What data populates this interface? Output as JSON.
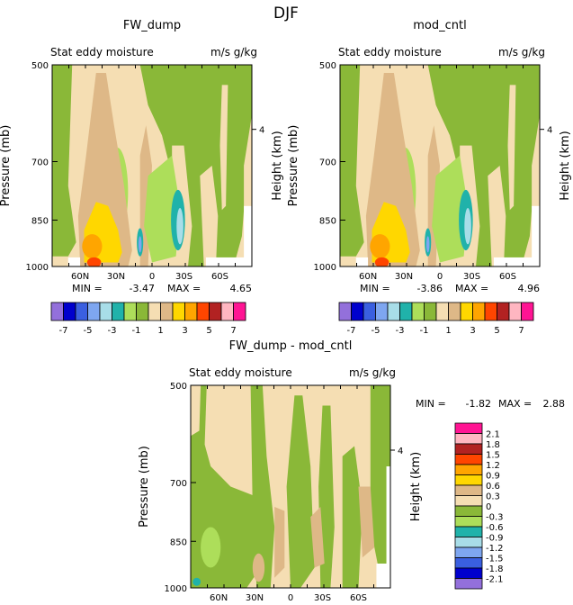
{
  "figure_title": "DJF",
  "chart_data": [
    {
      "type": "heatmap",
      "title": "FW_dump",
      "subtitle_left": "Stat eddy moisture",
      "subtitle_right": "m/s g/kg",
      "ylabel": "Pressure (mb)",
      "ylabel_right": "Height (km)",
      "yticks": [
        "500",
        "700",
        "850",
        "1000"
      ],
      "yticks_right": [
        "4"
      ],
      "xticks": [
        "60N",
        "30N",
        "0",
        "30S",
        "60S"
      ],
      "min_label": "MIN =",
      "min_value": "-3.47",
      "max_label": "MAX =",
      "max_value": "4.65"
    },
    {
      "type": "heatmap",
      "title": "mod_cntl",
      "subtitle_left": "Stat eddy moisture",
      "subtitle_right": "m/s g/kg",
      "ylabel": "Pressure (mb)",
      "ylabel_right": "Height (km)",
      "yticks": [
        "500",
        "700",
        "850",
        "1000"
      ],
      "yticks_right": [
        "4"
      ],
      "xticks": [
        "60N",
        "30N",
        "0",
        "30S",
        "60S"
      ],
      "min_label": "MIN =",
      "min_value": "-3.86",
      "max_label": "MAX =",
      "max_value": "4.96"
    },
    {
      "type": "heatmap",
      "title": "FW_dump - mod_cntl",
      "subtitle_left": "Stat eddy moisture",
      "subtitle_right": "m/s g/kg",
      "ylabel": "Pressure (mb)",
      "ylabel_right": "Height (km)",
      "yticks": [
        "500",
        "700",
        "850",
        "1000"
      ],
      "yticks_right": [
        "4"
      ],
      "xticks": [
        "60N",
        "30N",
        "0",
        "30S",
        "60S"
      ],
      "min_label": "MIN =",
      "min_value": "-1.82",
      "max_label": "MAX =",
      "max_value": "2.88"
    }
  ],
  "colorbar_top": {
    "colors": [
      "#9370db",
      "#0000cd",
      "#3a5fe0",
      "#7ea6f0",
      "#a8dde8",
      "#20b2aa",
      "#adde5a",
      "#8ab838",
      "#f5deb3",
      "#deb887",
      "#ffd700",
      "#ffa500",
      "#ff4500",
      "#b22222",
      "#ffb6c1",
      "#ff1493"
    ],
    "labels": [
      "-7",
      "-5",
      "-3",
      "-1",
      "1",
      "3",
      "5",
      "7"
    ]
  },
  "colorbar_diff": {
    "colors": [
      "#9370db",
      "#0000cd",
      "#3a5fe0",
      "#7ea6f0",
      "#a8dde8",
      "#20b2aa",
      "#adde5a",
      "#8ab838",
      "#f5deb3",
      "#deb887",
      "#ffd700",
      "#ffa500",
      "#ff4500",
      "#b22222",
      "#ffb6c1",
      "#ff1493"
    ],
    "labels": [
      "-2.1",
      "-1.8",
      "-1.5",
      "-1.2",
      "-0.9",
      "-0.6",
      "-0.3",
      "0",
      "0.3",
      "0.6",
      "0.9",
      "1.2",
      "1.5",
      "1.8",
      "2.1"
    ]
  }
}
